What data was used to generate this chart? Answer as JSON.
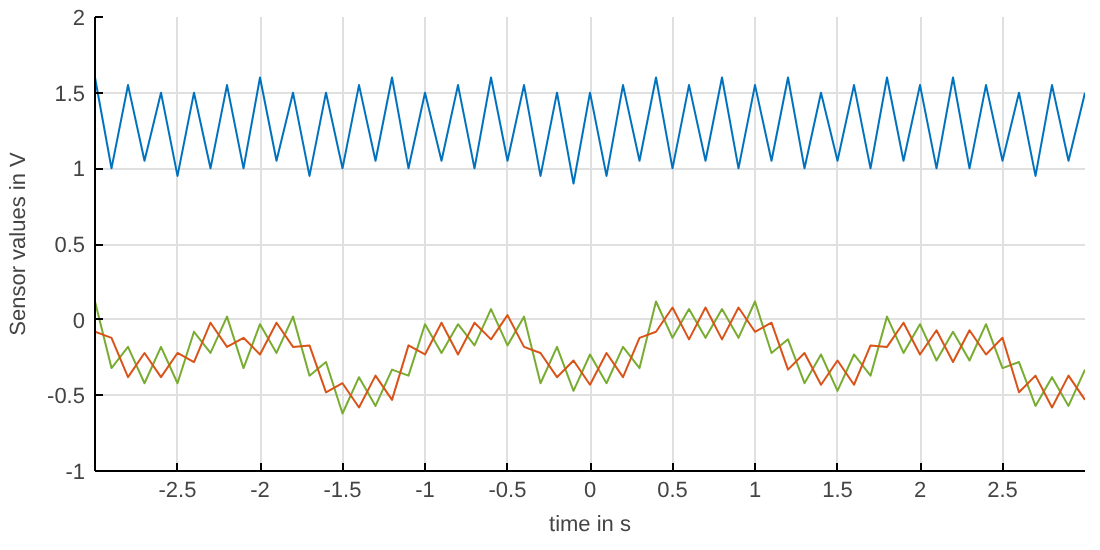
{
  "chart_data": {
    "type": "line",
    "xlabel": "time in s",
    "ylabel": "Sensor values in V",
    "x": [
      -3.0,
      -2.9,
      -2.8,
      -2.7,
      -2.6,
      -2.5,
      -2.4,
      -2.3,
      -2.2,
      -2.1,
      -2.0,
      -1.9,
      -1.8,
      -1.7,
      -1.6,
      -1.5,
      -1.4,
      -1.3,
      -1.2,
      -1.1,
      -1.0,
      -0.9,
      -0.8,
      -0.7,
      -0.6,
      -0.5,
      -0.4,
      -0.3,
      -0.2,
      -0.1,
      0.0,
      0.1,
      0.2,
      0.3,
      0.4,
      0.5,
      0.6,
      0.7,
      0.8,
      0.9,
      1.0,
      1.1,
      1.2,
      1.3,
      1.4,
      1.5,
      1.6,
      1.7,
      1.8,
      1.9,
      2.0,
      2.1,
      2.2,
      2.3,
      2.4,
      2.5,
      2.6,
      2.7,
      2.8,
      2.9,
      3.0
    ],
    "series": [
      {
        "color": "#0072bd",
        "values": [
          1.6,
          1.0,
          1.55,
          1.05,
          1.5,
          0.95,
          1.5,
          1.0,
          1.55,
          1.0,
          1.6,
          1.05,
          1.5,
          0.95,
          1.5,
          1.0,
          1.55,
          1.05,
          1.6,
          1.0,
          1.5,
          1.05,
          1.55,
          1.0,
          1.6,
          1.05,
          1.55,
          0.95,
          1.5,
          0.9,
          1.5,
          0.95,
          1.55,
          1.05,
          1.6,
          1.0,
          1.55,
          1.05,
          1.6,
          1.0,
          1.55,
          1.05,
          1.6,
          1.0,
          1.5,
          1.05,
          1.55,
          1.0,
          1.6,
          1.05,
          1.55,
          1.0,
          1.6,
          1.0,
          1.55,
          1.05,
          1.5,
          0.95,
          1.55,
          1.05,
          1.5
        ]
      },
      {
        "color": "#77ac30",
        "values": [
          0.12,
          -0.32,
          -0.18,
          -0.42,
          -0.18,
          -0.42,
          -0.08,
          -0.22,
          0.02,
          -0.32,
          -0.03,
          -0.22,
          0.02,
          -0.37,
          -0.28,
          -0.62,
          -0.38,
          -0.57,
          -0.33,
          -0.37,
          -0.03,
          -0.22,
          -0.03,
          -0.17,
          0.07,
          -0.17,
          0.02,
          -0.42,
          -0.18,
          -0.47,
          -0.23,
          -0.42,
          -0.18,
          -0.32,
          0.12,
          -0.12,
          0.07,
          -0.12,
          0.07,
          -0.12,
          0.12,
          -0.22,
          -0.13,
          -0.42,
          -0.23,
          -0.47,
          -0.23,
          -0.37,
          0.02,
          -0.22,
          -0.03,
          -0.27,
          -0.08,
          -0.27,
          -0.03,
          -0.32,
          -0.28,
          -0.57,
          -0.38,
          -0.57,
          -0.33
        ]
      },
      {
        "color": "#d95319",
        "values": [
          -0.08,
          -0.12,
          -0.38,
          -0.22,
          -0.38,
          -0.22,
          -0.28,
          -0.02,
          -0.18,
          -0.12,
          -0.23,
          -0.02,
          -0.18,
          -0.17,
          -0.48,
          -0.42,
          -0.58,
          -0.37,
          -0.53,
          -0.17,
          -0.23,
          -0.02,
          -0.23,
          -0.02,
          -0.13,
          0.03,
          -0.18,
          -0.22,
          -0.38,
          -0.27,
          -0.43,
          -0.22,
          -0.38,
          -0.12,
          -0.08,
          0.08,
          -0.13,
          0.08,
          -0.13,
          0.08,
          -0.08,
          -0.02,
          -0.33,
          -0.22,
          -0.43,
          -0.27,
          -0.43,
          -0.17,
          -0.18,
          -0.02,
          -0.23,
          -0.07,
          -0.28,
          -0.07,
          -0.23,
          -0.12,
          -0.48,
          -0.37,
          -0.58,
          -0.37,
          -0.53
        ]
      }
    ],
    "xlim": [
      -3,
      3
    ],
    "xticks": [
      -2.5,
      -2,
      -1.5,
      -1,
      -0.5,
      0,
      0.5,
      1,
      1.5,
      2,
      2.5
    ],
    "ylim": [
      -1,
      2
    ],
    "yticks": [
      -1,
      -0.5,
      0,
      0.5,
      1,
      1.5,
      2
    ],
    "grid": true
  }
}
